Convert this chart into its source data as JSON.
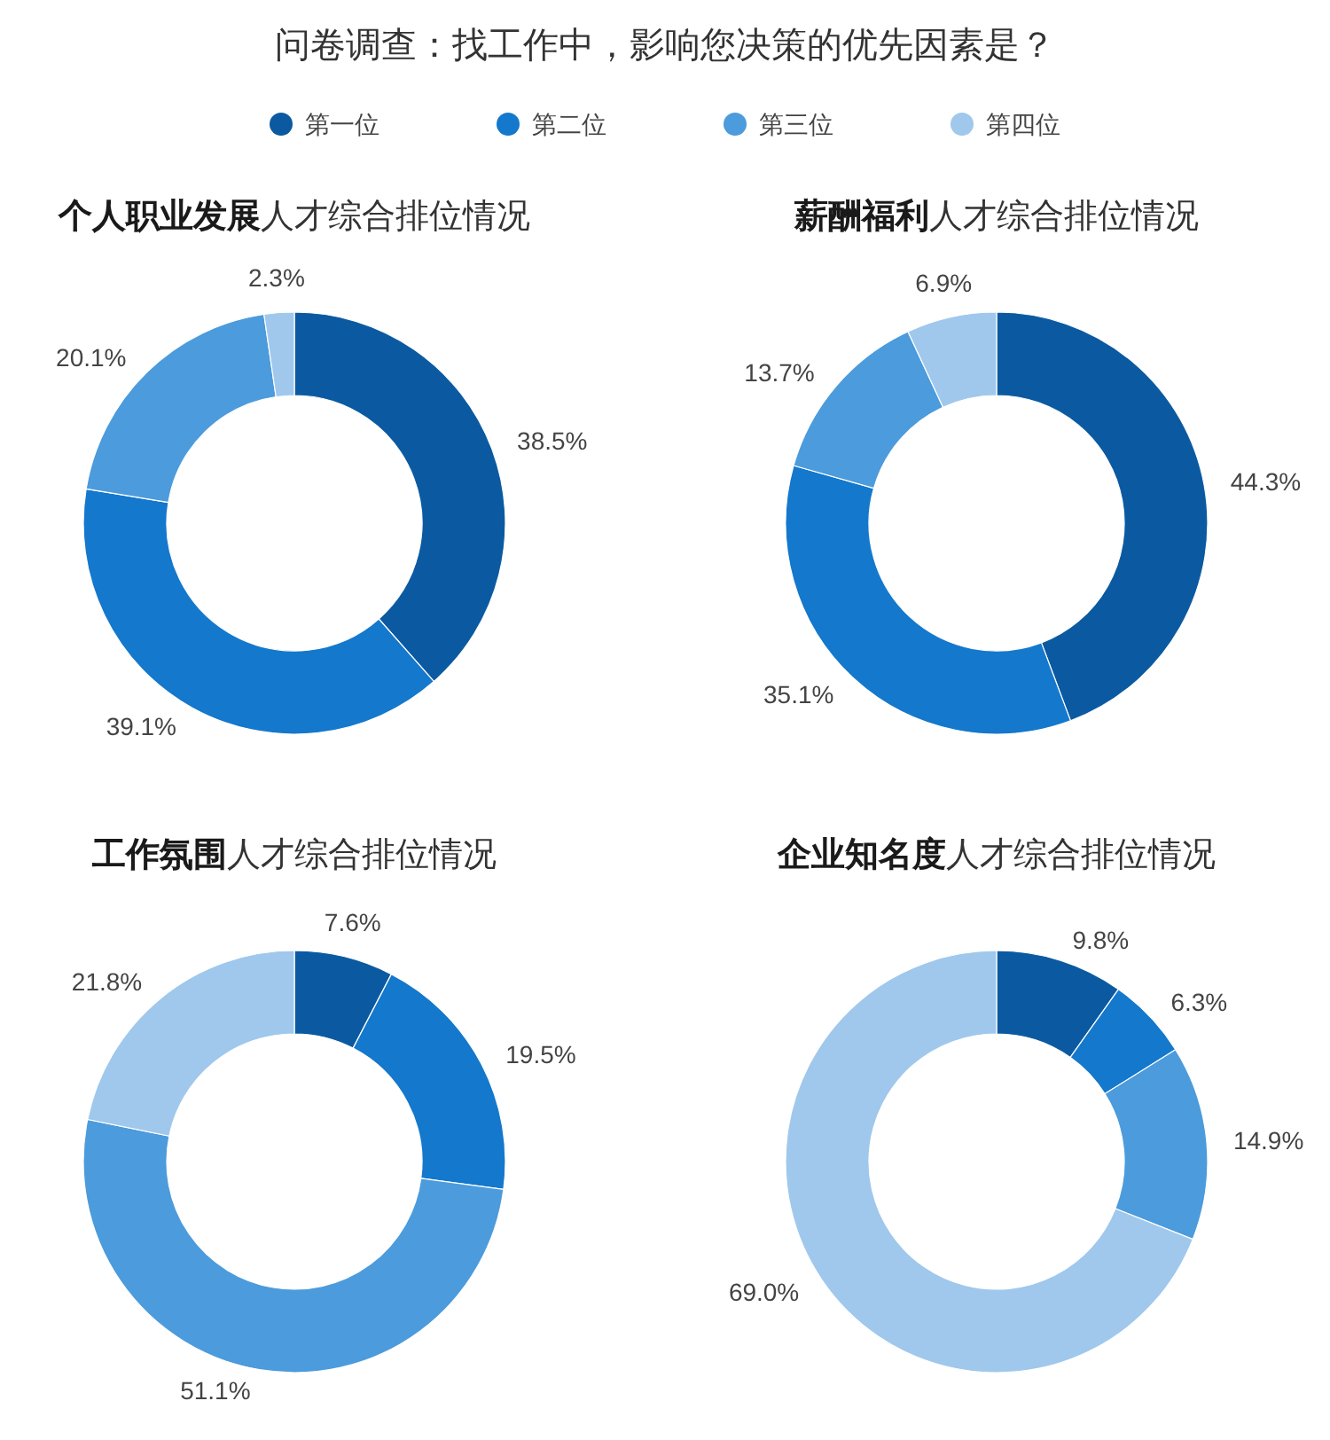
{
  "chart_data": [
    {
      "type": "other",
      "title": "问卷调查：找工作中，影响您决策的优先因素是？"
    },
    {
      "type": "donut",
      "title": "个人职业发展人才综合排位情况",
      "categories": [
        "第一位",
        "第二位",
        "第三位",
        "第四位"
      ],
      "values": [
        38.5,
        39.1,
        20.1,
        2.3
      ],
      "colors": [
        "#0b5aa1",
        "#1478cc",
        "#4c9bdc",
        "#9fc8ec"
      ],
      "value_labels": [
        "38.5%",
        "39.1%",
        "20.1%",
        "2.3%"
      ],
      "legend": "top"
    },
    {
      "type": "donut",
      "title": "薪酬福利人才综合排位情况",
      "values": [
        44.3,
        35.1,
        13.7,
        6.9
      ],
      "colors": [
        "#0b5aa1",
        "#1478cc",
        "#4c9bdc",
        "#9fc8ec"
      ],
      "value_labels": [
        "44.3%",
        "35.1%",
        "13.7%",
        "6.9%"
      ]
    },
    {
      "type": "donut",
      "title": "工作氛围人才综合排位情况",
      "values": [
        7.6,
        19.5,
        51.1,
        21.8
      ],
      "colors": [
        "#0b5aa1",
        "#1478cc",
        "#4c9bdc",
        "#9fc8ec"
      ],
      "value_labels": [
        "7.6%",
        "19.5%",
        "51.1%",
        "21.8%"
      ]
    },
    {
      "type": "donut",
      "title": "企业知名度人才综合排位情况",
      "values": [
        9.8,
        6.3,
        14.9,
        69.0
      ],
      "colors": [
        "#0b5aa1",
        "#1478cc",
        "#4c9bdc",
        "#9fc8ec"
      ],
      "value_labels": [
        "9.8%",
        "6.3%",
        "14.9%",
        "69.0%"
      ]
    }
  ]
}
